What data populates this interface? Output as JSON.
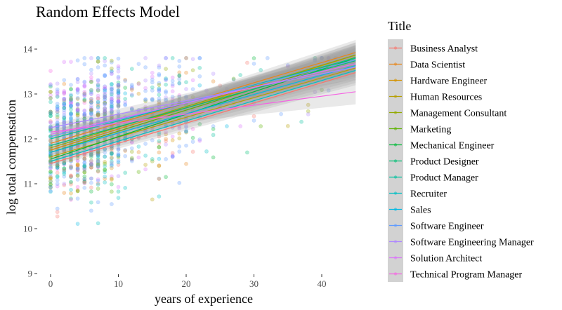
{
  "chart_data": {
    "type": "scatter",
    "title": "Random Effects Model",
    "xlabel": "years of experience",
    "ylabel": "log total compensation",
    "xlim": [
      -1,
      45
    ],
    "ylim": [
      9,
      14.2
    ],
    "x_ticks": [
      0,
      10,
      20,
      30,
      40
    ],
    "y_ticks": [
      9,
      10,
      11,
      12,
      13,
      14
    ],
    "grid": false,
    "legend": {
      "title": "Title",
      "position": "right"
    },
    "point_alpha": 0.3,
    "series": [
      {
        "name": "Business Analyst",
        "color": "#F8766D",
        "intercept": 11.45,
        "slope": 0.045
      },
      {
        "name": "Data Scientist",
        "color": "#E7861B",
        "intercept": 11.9,
        "slope": 0.045
      },
      {
        "name": "Hardware Engineer",
        "color": "#D39200",
        "intercept": 11.75,
        "slope": 0.047
      },
      {
        "name": "Human Resources",
        "color": "#B79F00",
        "intercept": 11.6,
        "slope": 0.044
      },
      {
        "name": "Management Consultant",
        "color": "#93AA00",
        "intercept": 11.8,
        "slope": 0.046
      },
      {
        "name": "Marketing",
        "color": "#5EB300",
        "intercept": 11.7,
        "slope": 0.047
      },
      {
        "name": "Mechanical Engineer",
        "color": "#00BA38",
        "intercept": 11.55,
        "slope": 0.05
      },
      {
        "name": "Product Designer",
        "color": "#00BF74",
        "intercept": 11.85,
        "slope": 0.042
      },
      {
        "name": "Product Manager",
        "color": "#00C19F",
        "intercept": 12.0,
        "slope": 0.04
      },
      {
        "name": "Recruiter",
        "color": "#00BFC4",
        "intercept": 11.5,
        "slope": 0.045
      },
      {
        "name": "Sales",
        "color": "#00B9E3",
        "intercept": 11.7,
        "slope": 0.043
      },
      {
        "name": "Software Engineer",
        "color": "#619CFF",
        "intercept": 12.05,
        "slope": 0.038
      },
      {
        "name": "Software Engineering Manager",
        "color": "#AE87FF",
        "intercept": 12.25,
        "slope": 0.03
      },
      {
        "name": "Solution Architect",
        "color": "#DB72FB",
        "intercept": 12.1,
        "slope": 0.035
      },
      {
        "name": "Technical Program Manager",
        "color": "#F564E3",
        "intercept": 12.15,
        "slope": 0.02
      }
    ]
  }
}
